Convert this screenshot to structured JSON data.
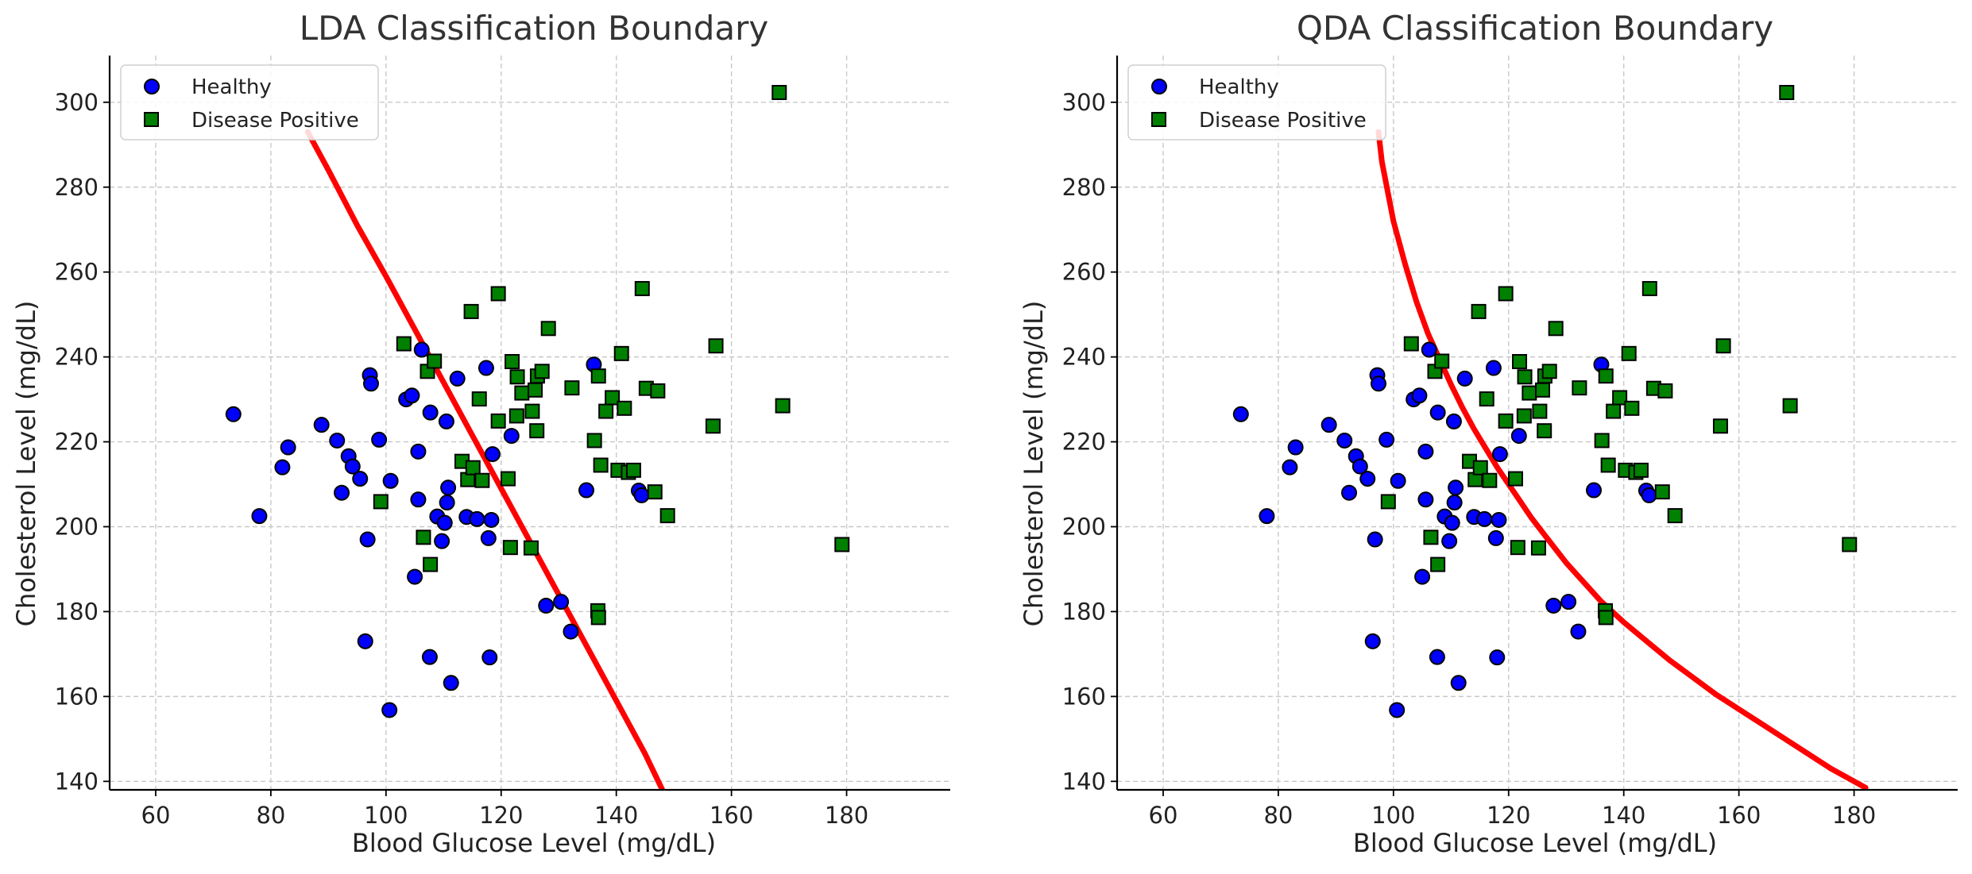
{
  "chart_data": [
    {
      "type": "scatter",
      "title": "LDA Classification Boundary",
      "xlabel": "Blood Glucose Level (mg/dL)",
      "ylabel": "Cholesterol Level (mg/dL)",
      "xlim": [
        52,
        198
      ],
      "ylim": [
        138,
        311
      ],
      "xticks": [
        60,
        80,
        100,
        120,
        140,
        160,
        180
      ],
      "yticks": [
        140,
        160,
        180,
        200,
        220,
        240,
        260,
        280,
        300
      ],
      "grid": true,
      "legend": {
        "position": "top-left",
        "entries": [
          "Healthy",
          "Disease Positive"
        ]
      },
      "series": [
        {
          "name": "Healthy",
          "marker": "circle",
          "color": "#0000ff",
          "points": [
            [
              73.5,
              226.5
            ],
            [
              78,
              202.5
            ],
            [
              82,
              214
            ],
            [
              83,
              218.7
            ],
            [
              88.8,
              224
            ],
            [
              91.5,
              220.3
            ],
            [
              92.3,
              208
            ],
            [
              93.5,
              216.6
            ],
            [
              94.2,
              214.2
            ],
            [
              95.5,
              211.3
            ],
            [
              96.4,
              173
            ],
            [
              96.8,
              197
            ],
            [
              97.2,
              235.7
            ],
            [
              97.4,
              233.7
            ],
            [
              98.8,
              220.5
            ],
            [
              100.6,
              156.8
            ],
            [
              100.8,
              210.8
            ],
            [
              103.5,
              230
            ],
            [
              104.5,
              230.9
            ],
            [
              105,
              188.2
            ],
            [
              105.6,
              217.7
            ],
            [
              105.6,
              206.4
            ],
            [
              106.2,
              241.7
            ],
            [
              107.6,
              169.3
            ],
            [
              107.7,
              226.9
            ],
            [
              108.9,
              202.4
            ],
            [
              109.7,
              196.6
            ],
            [
              110.2,
              200.9
            ],
            [
              110.5,
              224.8
            ],
            [
              110.6,
              205.7
            ],
            [
              110.8,
              209.2
            ],
            [
              111.3,
              163.2
            ],
            [
              112.4,
              234.9
            ],
            [
              114,
              202.3
            ],
            [
              115.8,
              201.8
            ],
            [
              117.4,
              237.4
            ],
            [
              117.8,
              197.3
            ],
            [
              118,
              169.2
            ],
            [
              118.3,
              201.6
            ],
            [
              118.5,
              217.1
            ],
            [
              121.8,
              221.4
            ],
            [
              127.8,
              181.4
            ],
            [
              130.4,
              182.3
            ],
            [
              132.1,
              175.3
            ],
            [
              134.8,
              208.6
            ],
            [
              136.1,
              238.2
            ],
            [
              143.9,
              208.5
            ],
            [
              144.4,
              207.4
            ]
          ]
        },
        {
          "name": "Disease Positive",
          "marker": "square",
          "color": "#008000",
          "points": [
            [
              99.1,
              205.9
            ],
            [
              103.1,
              243.1
            ],
            [
              106.5,
              197.5
            ],
            [
              107.2,
              236.6
            ],
            [
              107.7,
              191.1
            ],
            [
              108.4,
              239
            ],
            [
              113.2,
              215.4
            ],
            [
              114.2,
              211.1
            ],
            [
              114.8,
              250.7
            ],
            [
              115.1,
              213.9
            ],
            [
              116.2,
              230.1
            ],
            [
              116.7,
              210.9
            ],
            [
              119.5,
              254.9
            ],
            [
              119.5,
              224.9
            ],
            [
              121.2,
              211.3
            ],
            [
              121.6,
              195.1
            ],
            [
              121.9,
              238.9
            ],
            [
              122.7,
              226.1
            ],
            [
              122.8,
              235.3
            ],
            [
              123.6,
              231.5
            ],
            [
              125.2,
              195
            ],
            [
              125.4,
              227.2
            ],
            [
              125.9,
              232.2
            ],
            [
              126.2,
              222.6
            ],
            [
              126.3,
              235.5
            ],
            [
              127.1,
              236.6
            ],
            [
              128.2,
              246.7
            ],
            [
              132.3,
              232.7
            ],
            [
              136.2,
              220.3
            ],
            [
              136.8,
              180.2
            ],
            [
              136.9,
              178.6
            ],
            [
              136.9,
              235.5
            ],
            [
              137.3,
              214.5
            ],
            [
              138.2,
              227.2
            ],
            [
              139.3,
              230.4
            ],
            [
              140.3,
              213.3
            ],
            [
              140.9,
              240.8
            ],
            [
              141.4,
              227.9
            ],
            [
              142.1,
              212.8
            ],
            [
              143,
              213.3
            ],
            [
              144.5,
              256.1
            ],
            [
              145.2,
              232.6
            ],
            [
              146.7,
              208.2
            ],
            [
              147.2,
              232
            ],
            [
              148.9,
              202.6
            ],
            [
              156.8,
              223.7
            ],
            [
              157.3,
              242.6
            ],
            [
              168.3,
              302.3
            ],
            [
              168.9,
              228.5
            ],
            [
              179.2,
              195.8
            ]
          ]
        }
      ],
      "boundary": {
        "color": "#ff0000",
        "points": [
          [
            86.4,
            293
          ],
          [
            90,
            284
          ],
          [
            95,
            271
          ],
          [
            100,
            259
          ],
          [
            105,
            246.5
          ],
          [
            110,
            234
          ],
          [
            115,
            221.5
          ],
          [
            120,
            209
          ],
          [
            125,
            196.5
          ],
          [
            130,
            184
          ],
          [
            135,
            171.5
          ],
          [
            140,
            159
          ],
          [
            145,
            146.5
          ],
          [
            148,
            138
          ]
        ]
      }
    },
    {
      "type": "scatter",
      "title": "QDA Classification Boundary",
      "xlabel": "Blood Glucose Level (mg/dL)",
      "ylabel": "Cholesterol Level (mg/dL)",
      "xlim": [
        52,
        198
      ],
      "ylim": [
        138,
        311
      ],
      "xticks": [
        60,
        80,
        100,
        120,
        140,
        160,
        180
      ],
      "yticks": [
        140,
        160,
        180,
        200,
        220,
        240,
        260,
        280,
        300
      ],
      "grid": true,
      "legend": {
        "position": "top-left",
        "entries": [
          "Healthy",
          "Disease Positive"
        ]
      },
      "series": [
        {
          "name": "Healthy",
          "marker": "circle",
          "color": "#0000ff",
          "points": [
            [
              73.5,
              226.5
            ],
            [
              78,
              202.5
            ],
            [
              82,
              214
            ],
            [
              83,
              218.7
            ],
            [
              88.8,
              224
            ],
            [
              91.5,
              220.3
            ],
            [
              92.3,
              208
            ],
            [
              93.5,
              216.6
            ],
            [
              94.2,
              214.2
            ],
            [
              95.5,
              211.3
            ],
            [
              96.4,
              173
            ],
            [
              96.8,
              197
            ],
            [
              97.2,
              235.7
            ],
            [
              97.4,
              233.7
            ],
            [
              98.8,
              220.5
            ],
            [
              100.6,
              156.8
            ],
            [
              100.8,
              210.8
            ],
            [
              103.5,
              230
            ],
            [
              104.5,
              230.9
            ],
            [
              105,
              188.2
            ],
            [
              105.6,
              217.7
            ],
            [
              105.6,
              206.4
            ],
            [
              106.2,
              241.7
            ],
            [
              107.6,
              169.3
            ],
            [
              107.7,
              226.9
            ],
            [
              108.9,
              202.4
            ],
            [
              109.7,
              196.6
            ],
            [
              110.2,
              200.9
            ],
            [
              110.5,
              224.8
            ],
            [
              110.6,
              205.7
            ],
            [
              110.8,
              209.2
            ],
            [
              111.3,
              163.2
            ],
            [
              112.4,
              234.9
            ],
            [
              114,
              202.3
            ],
            [
              115.8,
              201.8
            ],
            [
              117.4,
              237.4
            ],
            [
              117.8,
              197.3
            ],
            [
              118,
              169.2
            ],
            [
              118.3,
              201.6
            ],
            [
              118.5,
              217.1
            ],
            [
              121.8,
              221.4
            ],
            [
              127.8,
              181.4
            ],
            [
              130.4,
              182.3
            ],
            [
              132.1,
              175.3
            ],
            [
              134.8,
              208.6
            ],
            [
              136.1,
              238.2
            ],
            [
              143.9,
              208.5
            ],
            [
              144.4,
              207.4
            ]
          ]
        },
        {
          "name": "Disease Positive",
          "marker": "square",
          "color": "#008000",
          "points": [
            [
              99.1,
              205.9
            ],
            [
              103.1,
              243.1
            ],
            [
              106.5,
              197.5
            ],
            [
              107.2,
              236.6
            ],
            [
              107.7,
              191.1
            ],
            [
              108.4,
              239
            ],
            [
              113.2,
              215.4
            ],
            [
              114.2,
              211.1
            ],
            [
              114.8,
              250.7
            ],
            [
              115.1,
              213.9
            ],
            [
              116.2,
              230.1
            ],
            [
              116.7,
              210.9
            ],
            [
              119.5,
              254.9
            ],
            [
              119.5,
              224.9
            ],
            [
              121.2,
              211.3
            ],
            [
              121.6,
              195.1
            ],
            [
              121.9,
              238.9
            ],
            [
              122.7,
              226.1
            ],
            [
              122.8,
              235.3
            ],
            [
              123.6,
              231.5
            ],
            [
              125.2,
              195
            ],
            [
              125.4,
              227.2
            ],
            [
              125.9,
              232.2
            ],
            [
              126.2,
              222.6
            ],
            [
              126.3,
              235.5
            ],
            [
              127.1,
              236.6
            ],
            [
              128.2,
              246.7
            ],
            [
              132.3,
              232.7
            ],
            [
              136.2,
              220.3
            ],
            [
              136.8,
              180.2
            ],
            [
              136.9,
              178.6
            ],
            [
              136.9,
              235.5
            ],
            [
              137.3,
              214.5
            ],
            [
              138.2,
              227.2
            ],
            [
              139.3,
              230.4
            ],
            [
              140.3,
              213.3
            ],
            [
              140.9,
              240.8
            ],
            [
              141.4,
              227.9
            ],
            [
              142.1,
              212.8
            ],
            [
              143,
              213.3
            ],
            [
              144.5,
              256.1
            ],
            [
              145.2,
              232.6
            ],
            [
              146.7,
              208.2
            ],
            [
              147.2,
              232
            ],
            [
              148.9,
              202.6
            ],
            [
              156.8,
              223.7
            ],
            [
              157.3,
              242.6
            ],
            [
              168.3,
              302.3
            ],
            [
              168.9,
              228.5
            ],
            [
              179.2,
              195.8
            ]
          ]
        }
      ],
      "boundary": {
        "color": "#ff0000",
        "points": [
          [
            97.4,
            293
          ],
          [
            98,
            286
          ],
          [
            100,
            272
          ],
          [
            102,
            262
          ],
          [
            104,
            253
          ],
          [
            106,
            245.5
          ],
          [
            108,
            239.5
          ],
          [
            110,
            233.5
          ],
          [
            112,
            228
          ],
          [
            114,
            223
          ],
          [
            116,
            218.5
          ],
          [
            118,
            214
          ],
          [
            120,
            210
          ],
          [
            122,
            206
          ],
          [
            124,
            202
          ],
          [
            126,
            198.5
          ],
          [
            128,
            195
          ],
          [
            130,
            191.5
          ],
          [
            132,
            188.5
          ],
          [
            134,
            185.5
          ],
          [
            136,
            182.5
          ],
          [
            138,
            180
          ],
          [
            140,
            177.5
          ],
          [
            144,
            173
          ],
          [
            148,
            168.5
          ],
          [
            152,
            164.5
          ],
          [
            156,
            160.5
          ],
          [
            160,
            157
          ],
          [
            164,
            153.5
          ],
          [
            168,
            150
          ],
          [
            172,
            146.5
          ],
          [
            176,
            143
          ],
          [
            180,
            140
          ],
          [
            182,
            138.5
          ]
        ]
      }
    }
  ]
}
